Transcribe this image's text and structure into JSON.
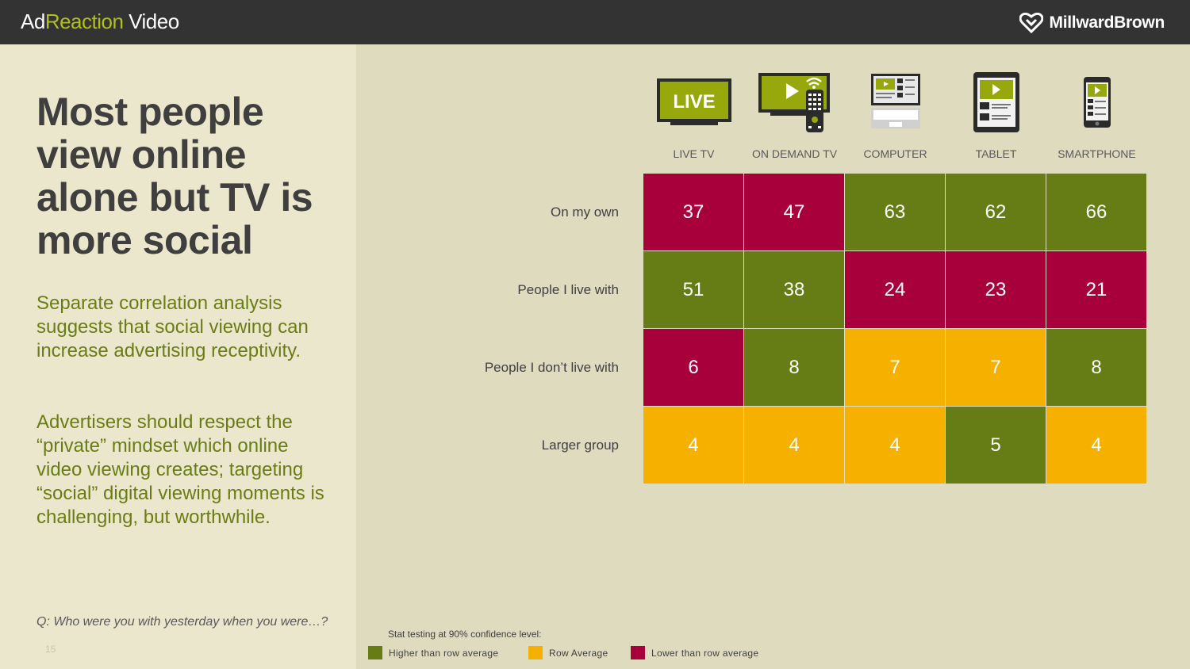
{
  "header": {
    "brand_prefix": "Ad",
    "brand_accent": "Reaction",
    "brand_suffix": " Video",
    "company": "MillwardBrown"
  },
  "left": {
    "headline": "Most people view online alone but TV is more social",
    "paragraph1": "Separate correlation analysis suggests that  social viewing can increase advertising receptivity.",
    "paragraph2": "Advertisers should respect the “private” mindset which online video viewing creates; targeting “social” digital viewing moments is challenging, but worthwhile.",
    "question": "Q:  Who were you with yesterday when you were…?",
    "page_number": "15"
  },
  "device_icons": [
    "live-tv-icon",
    "on-demand-tv-icon",
    "computer-icon",
    "tablet-icon",
    "smartphone-icon"
  ],
  "live_icon_text": "LIVE",
  "colors": {
    "higher": "#667c14",
    "average": "#f5b000",
    "lower": "#a8003b",
    "brand_accent": "#b0bf1e"
  },
  "chart_data": {
    "type": "table",
    "columns": [
      "LIVE TV",
      "ON DEMAND TV",
      "COMPUTER",
      "TABLET",
      "SMARTPHONE"
    ],
    "rows": [
      "On my own",
      "People I live with",
      "People I don’t live with",
      "Larger group"
    ],
    "values": [
      [
        37,
        47,
        63,
        62,
        66
      ],
      [
        51,
        38,
        24,
        23,
        21
      ],
      [
        6,
        8,
        7,
        7,
        8
      ],
      [
        4,
        4,
        4,
        5,
        4
      ]
    ],
    "significance": [
      [
        "lower",
        "lower",
        "higher",
        "higher",
        "higher"
      ],
      [
        "higher",
        "higher",
        "lower",
        "lower",
        "lower"
      ],
      [
        "lower",
        "higher",
        "average",
        "average",
        "higher"
      ],
      [
        "average",
        "average",
        "average",
        "higher",
        "average"
      ]
    ]
  },
  "legend": {
    "note": "Stat testing at 90% confidence level:",
    "higher": "Higher than row average",
    "average": "Row Average",
    "lower": "Lower than row average"
  }
}
